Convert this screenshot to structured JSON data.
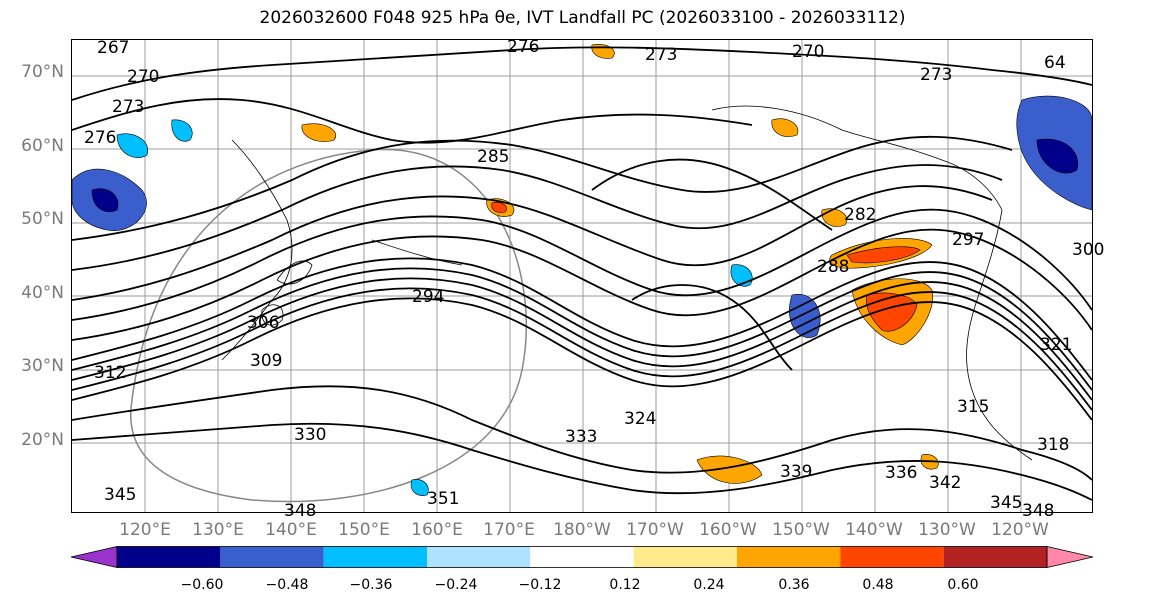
{
  "title": "2026032600 F048 925 hPa θe, IVT Landfall PC (2026033100 - 2026033112)",
  "latitude_labels": [
    "70°N",
    "60°N",
    "50°N",
    "40°N",
    "30°N",
    "20°N"
  ],
  "longitude_labels": [
    "120°E",
    "130°E",
    "140°E",
    "150°E",
    "160°E",
    "170°E",
    "180°W",
    "170°W",
    "160°W",
    "150°W",
    "140°W",
    "130°W",
    "120°W"
  ],
  "colorbar": {
    "tick_labels": [
      "−0.60",
      "−0.48",
      "−0.36",
      "−0.24",
      "−0.12",
      "0.12",
      "0.24",
      "0.36",
      "0.48",
      "0.60"
    ],
    "colors": [
      "#9a33cc",
      "#00008b",
      "#3a5fcd",
      "#00bfff",
      "#b0e2ff",
      "#ffffff",
      "#ffeb8c",
      "#ffa500",
      "#ff4500",
      "#b22222",
      "#ff88aa"
    ]
  },
  "contour_labels": [
    "267",
    "276",
    "273",
    "270",
    "273",
    "270",
    "273",
    "276",
    "285",
    "282",
    "294",
    "306",
    "309",
    "312",
    "330",
    "333",
    "324",
    "339",
    "336",
    "342",
    "345",
    "348",
    "351",
    "345",
    "348",
    "288",
    "297",
    "315",
    "318",
    "321",
    "300",
    "64"
  ],
  "colors": {
    "axis_label": "#7a7a7a",
    "contour": "#000000",
    "grid": "#9e9e9e"
  }
}
